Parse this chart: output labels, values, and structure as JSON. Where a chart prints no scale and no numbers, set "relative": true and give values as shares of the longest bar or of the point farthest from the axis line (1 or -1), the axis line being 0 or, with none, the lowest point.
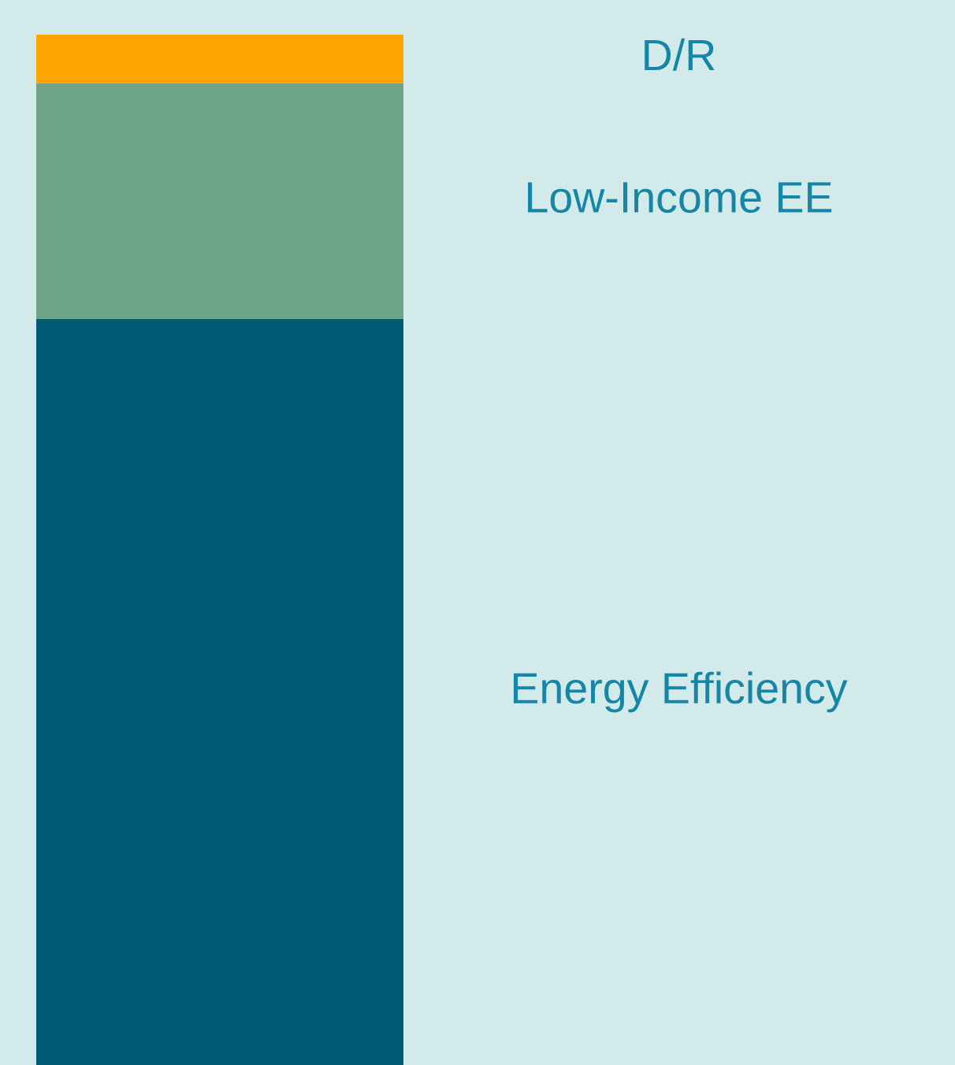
{
  "chart_data": {
    "type": "bar",
    "stacked": true,
    "relative": true,
    "categories": [
      null
    ],
    "legend": false,
    "series": [
      {
        "name": "Energy Efficiency",
        "color": "#025a78",
        "values": [
          0.724
        ]
      },
      {
        "name": "Low-Income EE",
        "color": "#6ea487",
        "values": [
          0.229
        ]
      },
      {
        "name": "D/R",
        "color": "#ffa500",
        "values": [
          0.047
        ]
      }
    ]
  }
}
